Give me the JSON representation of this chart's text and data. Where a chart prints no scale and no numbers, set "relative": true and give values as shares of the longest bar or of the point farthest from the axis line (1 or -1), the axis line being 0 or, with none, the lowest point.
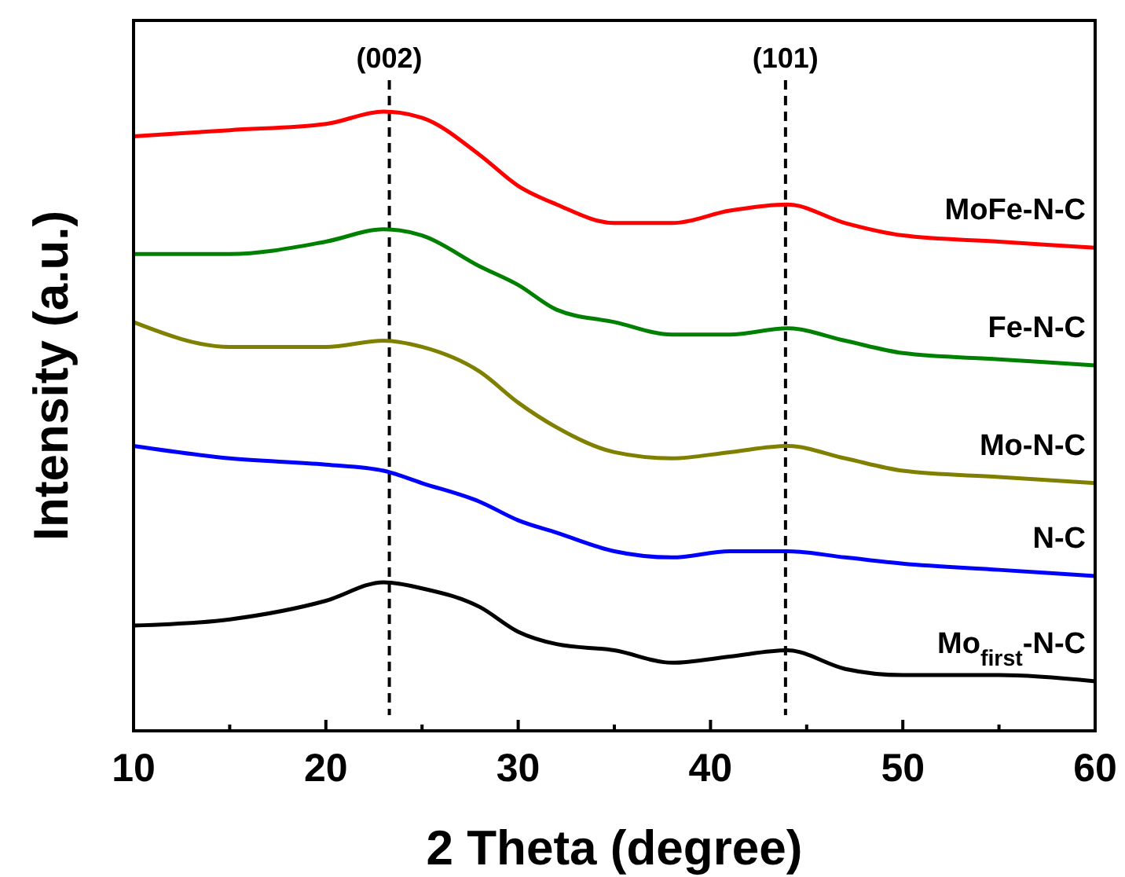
{
  "chart_data": {
    "type": "line",
    "relative": true,
    "xlabel": "2 Theta (degree)",
    "ylabel": "Intensity (a.u.)",
    "x": [
      10,
      15,
      20,
      23,
      25,
      28,
      30,
      32,
      35,
      38,
      41,
      44,
      47,
      50,
      55,
      60
    ],
    "xlim": [
      10,
      60
    ],
    "xticks": [
      10,
      {
        "value": 15,
        "label": null
      },
      20,
      {
        "value": 25,
        "label": null
      },
      30,
      {
        "value": 35,
        "label": null
      },
      40,
      {
        "value": 45,
        "label": null
      },
      50,
      {
        "value": 55,
        "label": null
      },
      60
    ],
    "tick_labels": "x",
    "grid": false,
    "legend": false,
    "line_style": "solid",
    "marker": "none",
    "series": [
      {
        "name": "MoFe-N-C",
        "color": "#ff0000",
        "values": [
          0.96,
          0.97,
          0.98,
          1.0,
          0.99,
          0.93,
          0.88,
          0.85,
          0.82,
          0.82,
          0.84,
          0.85,
          0.82,
          0.8,
          0.79,
          0.78
        ]
      },
      {
        "name": "Fe-N-C",
        "color": "#008000",
        "values": [
          0.77,
          0.77,
          0.79,
          0.81,
          0.8,
          0.75,
          0.72,
          0.68,
          0.66,
          0.64,
          0.64,
          0.65,
          0.63,
          0.61,
          0.6,
          0.59
        ]
      },
      {
        "name": "Mo-N-C",
        "color": "#808000",
        "values": [
          0.66,
          0.62,
          0.62,
          0.63,
          0.62,
          0.58,
          0.53,
          0.49,
          0.45,
          0.44,
          0.45,
          0.46,
          0.44,
          0.42,
          0.41,
          0.4
        ]
      },
      {
        "name": "N-C",
        "color": "#0000ff",
        "values": [
          0.46,
          0.44,
          0.43,
          0.42,
          0.4,
          0.37,
          0.34,
          0.32,
          0.29,
          0.28,
          0.29,
          0.29,
          0.28,
          0.27,
          0.26,
          0.25
        ]
      },
      {
        "name": "Mo$_{first}$-N-C",
        "color": "#000000",
        "values": [
          0.17,
          0.18,
          0.21,
          0.24,
          0.23,
          0.2,
          0.16,
          0.14,
          0.13,
          0.11,
          0.12,
          0.13,
          0.1,
          0.09,
          0.09,
          0.08
        ]
      }
    ],
    "ref_lines": [
      {
        "axis": "x",
        "value": 23.3,
        "line_style": "dashed",
        "color": "#000000"
      },
      {
        "axis": "x",
        "value": 43.9,
        "line_style": "dashed",
        "color": "#000000"
      }
    ],
    "annotations": [
      "(002)",
      "(101)"
    ]
  }
}
